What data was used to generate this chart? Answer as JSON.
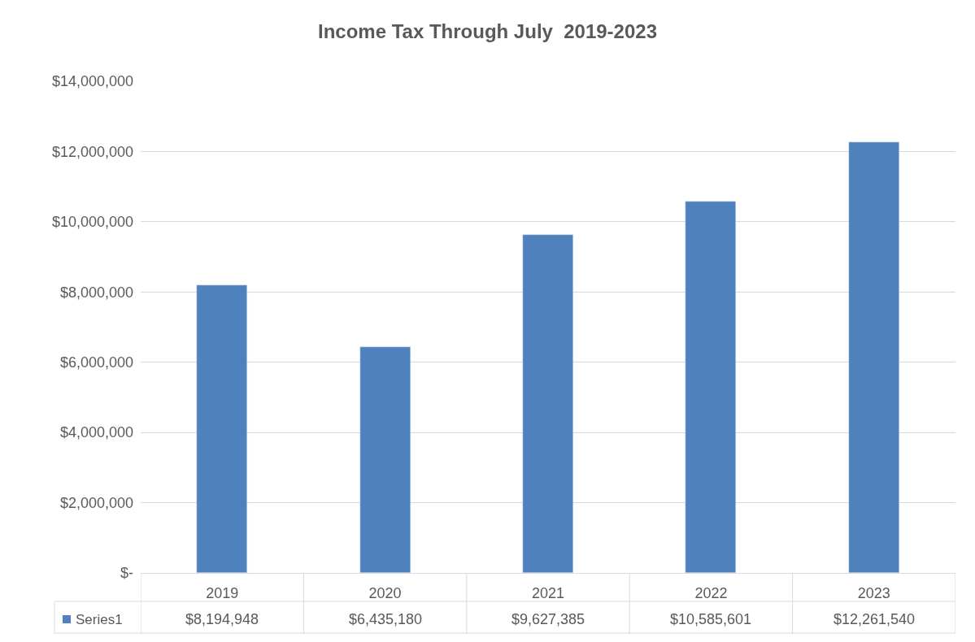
{
  "chart_data": {
    "type": "bar",
    "title": "Income Tax Through July  2019-2023",
    "categories": [
      "2019",
      "2020",
      "2021",
      "2022",
      "2023"
    ],
    "series": [
      {
        "name": "Series1",
        "color": "#4f81bd",
        "values": [
          8194948,
          6435180,
          9627385,
          10585601,
          12261540
        ],
        "value_labels": [
          "$8,194,948",
          "$6,435,180",
          "$9,627,385",
          "$10,585,601",
          "$12,261,540"
        ]
      }
    ],
    "ylim": [
      0,
      14000000
    ],
    "yticks": [
      {
        "value": 0,
        "label": "$-"
      },
      {
        "value": 2000000,
        "label": "$2,000,000"
      },
      {
        "value": 4000000,
        "label": "$4,000,000"
      },
      {
        "value": 6000000,
        "label": "$6,000,000"
      },
      {
        "value": 8000000,
        "label": "$8,000,000"
      },
      {
        "value": 10000000,
        "label": "$10,000,000"
      },
      {
        "value": 12000000,
        "label": "$12,000,000"
      },
      {
        "value": 14000000,
        "label": "$14,000,000"
      }
    ],
    "grid": "y"
  }
}
